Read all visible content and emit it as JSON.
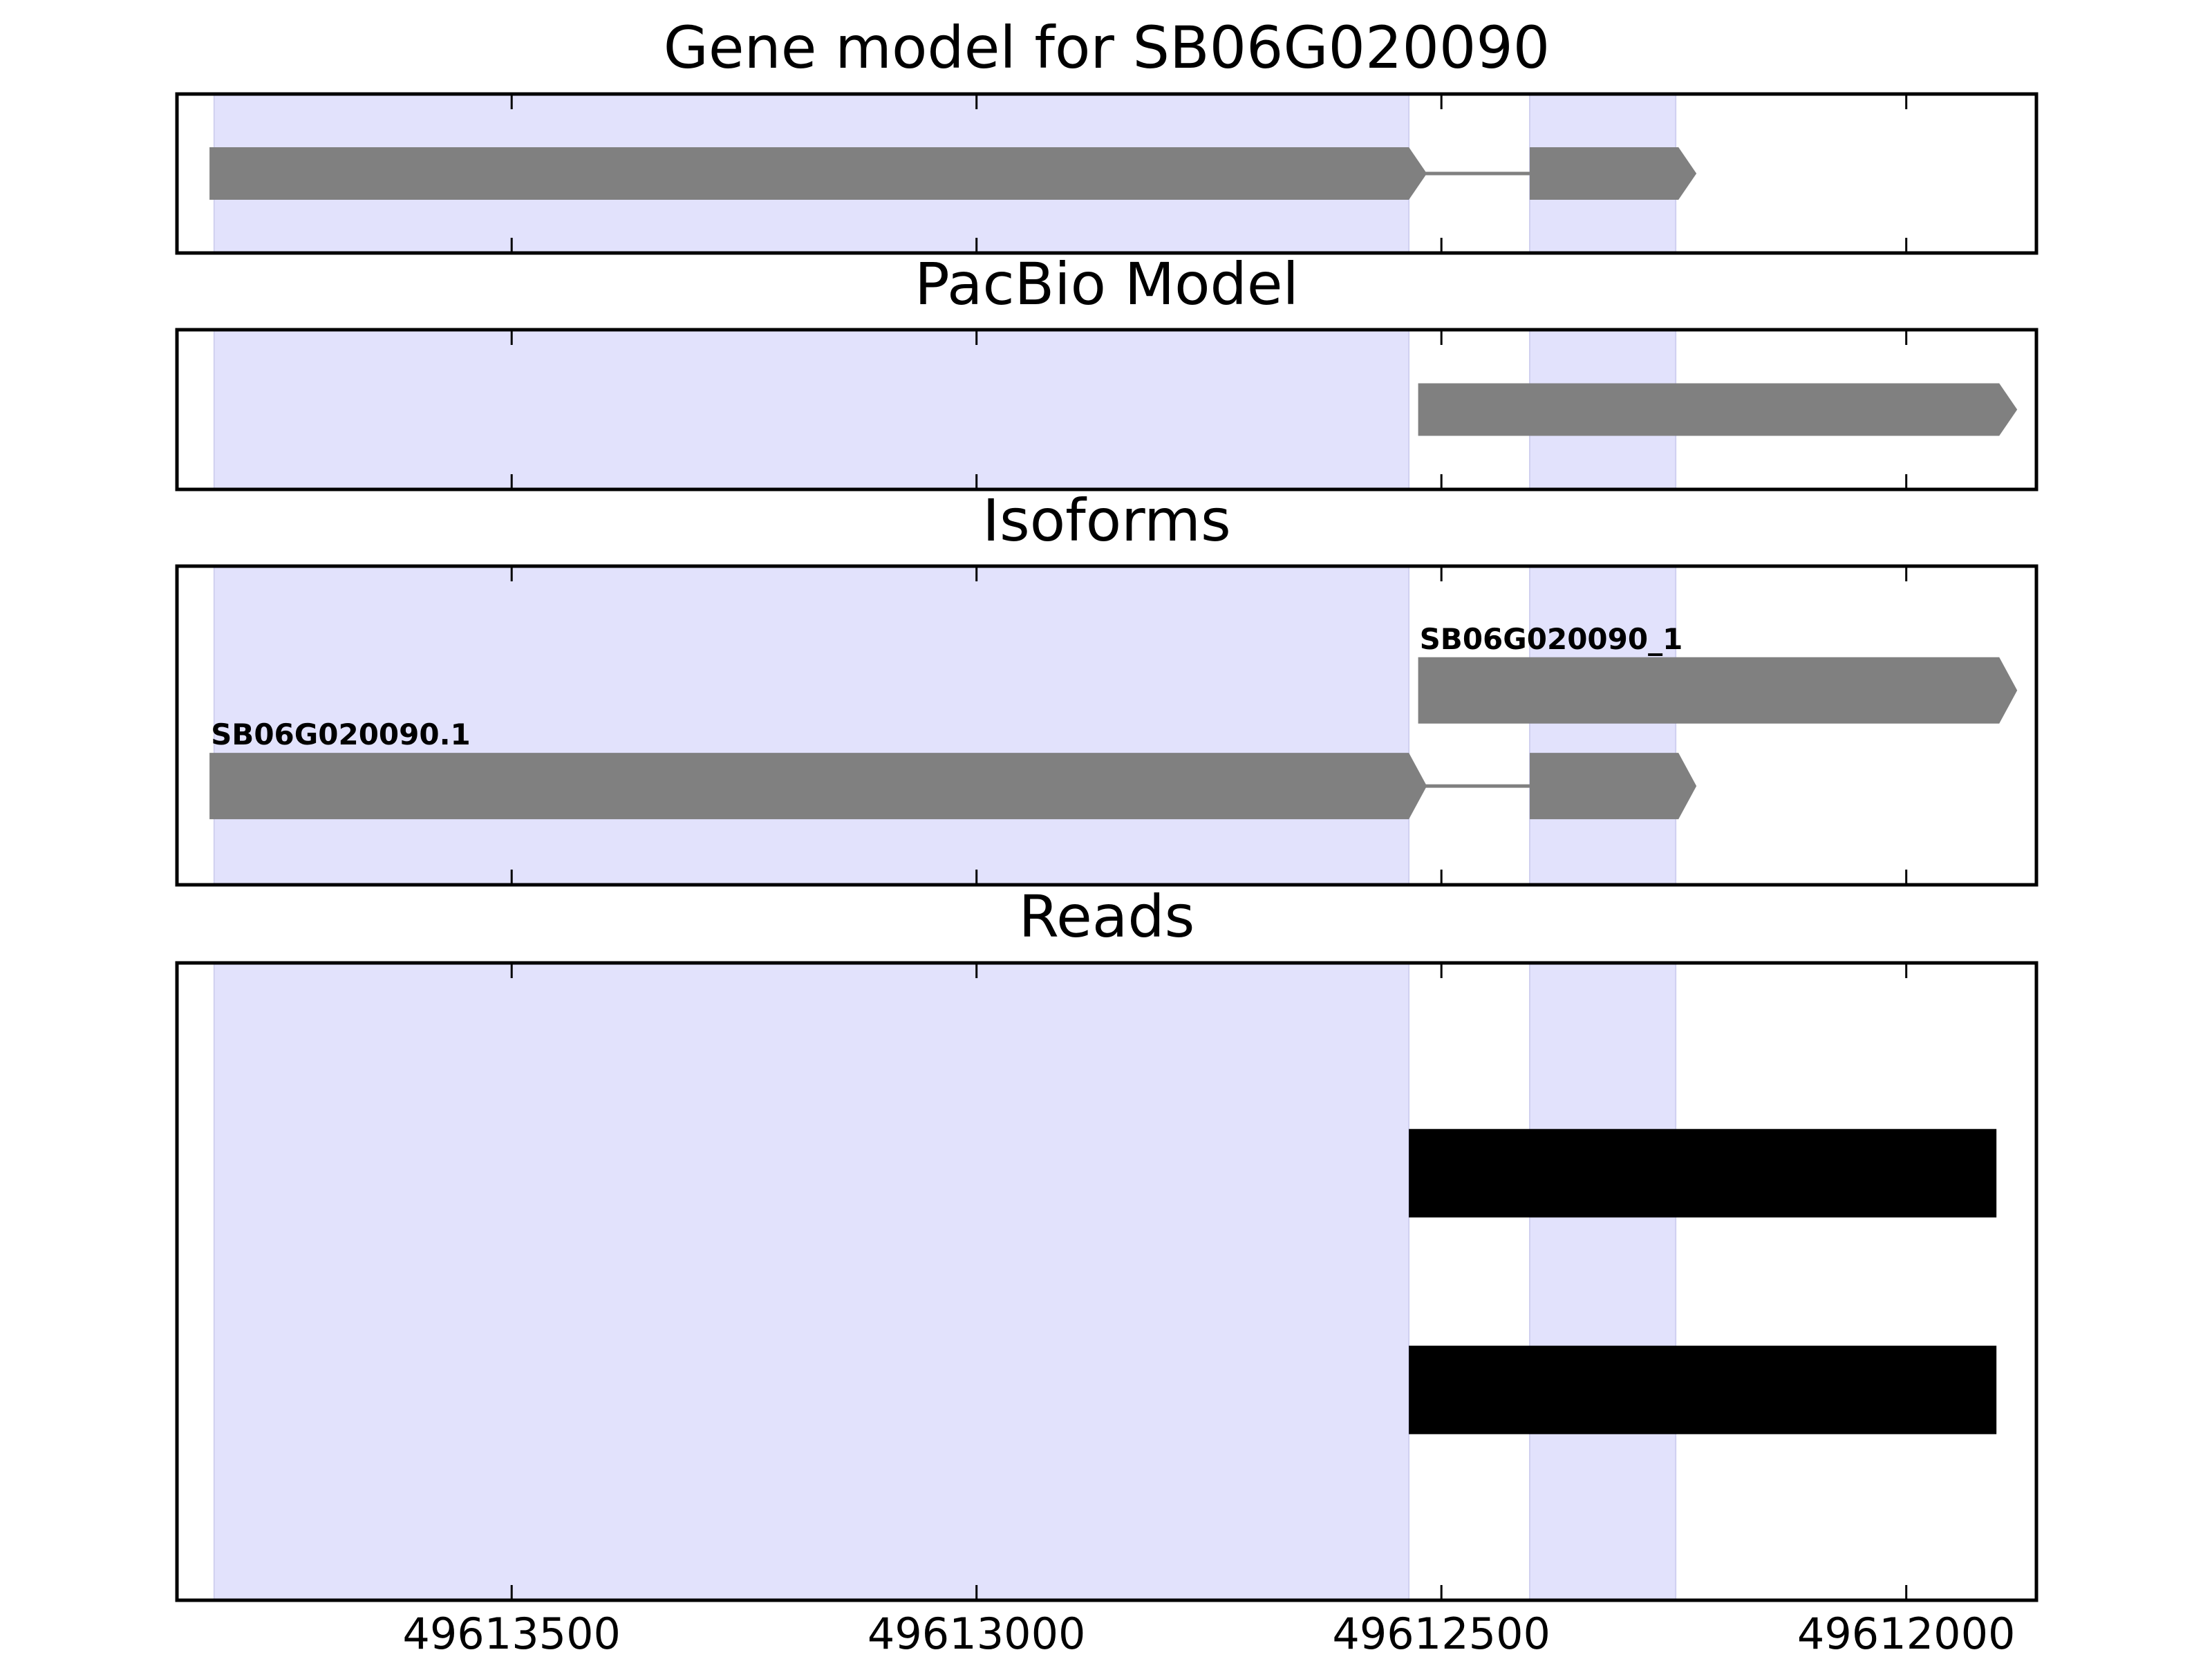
{
  "chart_data": {
    "type": "gene-track",
    "xlim": [
      49613860,
      49611860
    ],
    "x_axis_reversed": true,
    "x_ticks": [
      49613500,
      49613000,
      49612500,
      49612000
    ],
    "x_tick_labels": [
      "49613500",
      "49613000",
      "49612500",
      "49612000"
    ],
    "highlight_regions": [
      {
        "start": 49613820,
        "end": 49612535
      },
      {
        "start": 49612405,
        "end": 49612248
      }
    ],
    "highlight_color": "#e2e2fc",
    "feature_color": "#808080",
    "read_color": "#000000",
    "panels": [
      {
        "title": "Gene model for SB06G020090",
        "y_range": [
          0,
          1
        ],
        "transcripts": [
          {
            "label": "",
            "y": 0.5,
            "exons": [
              [
                49613825,
                49612535
              ],
              [
                49612405,
                49612245
              ]
            ]
          }
        ]
      },
      {
        "title": "PacBio Model",
        "y_range": [
          0,
          1
        ],
        "transcripts": [
          {
            "label": "",
            "y": 0.5,
            "exons": [
              [
                49612525,
                49611900
              ]
            ]
          }
        ]
      },
      {
        "title": "Isoforms",
        "y_range": [
          0,
          1
        ],
        "transcripts": [
          {
            "label": "SB06G020090_1",
            "y": 0.61,
            "exons": [
              [
                49612525,
                49611900
              ]
            ]
          },
          {
            "label": "SB06G020090.1",
            "y": 0.31,
            "exons": [
              [
                49613825,
                49612535
              ],
              [
                49612405,
                49612245
              ]
            ]
          }
        ]
      },
      {
        "title": "Reads",
        "y_range": [
          0,
          1
        ],
        "reads": [
          {
            "y": 0.67,
            "start": 49612535,
            "end": 49611903
          },
          {
            "y": 0.33,
            "start": 49612535,
            "end": 49611903
          }
        ]
      }
    ]
  }
}
